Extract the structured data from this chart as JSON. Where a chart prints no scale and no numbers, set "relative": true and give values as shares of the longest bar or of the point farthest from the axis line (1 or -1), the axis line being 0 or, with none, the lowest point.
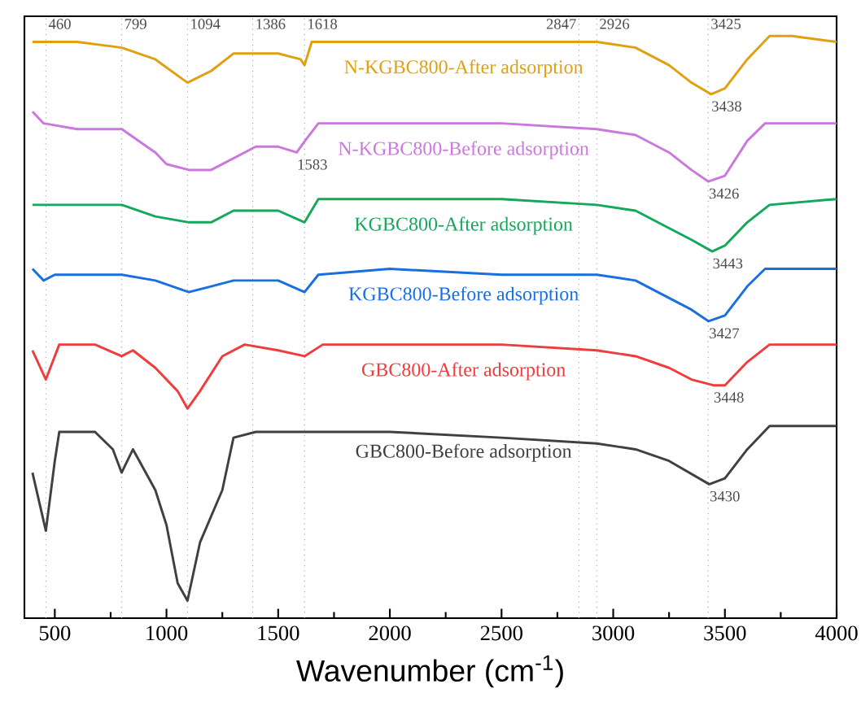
{
  "chart_data": {
    "type": "line",
    "xlabel": "Wavenumber (cm$^{-1}$)",
    "relative": true,
    "xlim": [
      364,
      4000
    ],
    "xticks": [
      500,
      1000,
      1500,
      2000,
      2500,
      3000,
      3500,
      4000
    ],
    "line_style": "solid",
    "series": [
      {
        "name": "N-KGBC800-After adsorption",
        "color": "#e0a010",
        "x": [
          400,
          600,
          800,
          950,
          1094,
          1200,
          1300,
          1500,
          1600,
          1618,
          1650,
          1800,
          2200,
          2500,
          2800,
          2926,
          3100,
          3250,
          3350,
          3438,
          3500,
          3600,
          3700,
          3800,
          4000
        ],
        "values": [
          0.99,
          0.99,
          0.98,
          0.96,
          0.92,
          0.94,
          0.97,
          0.97,
          0.96,
          0.95,
          0.99,
          0.99,
          0.99,
          0.99,
          0.99,
          0.99,
          0.98,
          0.95,
          0.92,
          0.9,
          0.91,
          0.96,
          1.0,
          1.0,
          0.99
        ]
      },
      {
        "name": "N-KGBC800-Before adsorption",
        "color": "#cc77dd",
        "x": [
          400,
          450,
          600,
          800,
          950,
          1000,
          1100,
          1200,
          1300,
          1400,
          1500,
          1583,
          1620,
          1680,
          1800,
          2500,
          2926,
          3100,
          3250,
          3350,
          3426,
          3500,
          3600,
          3680,
          4000
        ],
        "values": [
          0.87,
          0.85,
          0.84,
          0.84,
          0.8,
          0.78,
          0.77,
          0.77,
          0.79,
          0.81,
          0.81,
          0.8,
          0.82,
          0.85,
          0.85,
          0.85,
          0.84,
          0.83,
          0.8,
          0.77,
          0.75,
          0.76,
          0.82,
          0.85,
          0.85
        ]
      },
      {
        "name": "KGBC800-After adsorption",
        "color": "#14a85a",
        "x": [
          400,
          600,
          800,
          950,
          1100,
          1200,
          1300,
          1500,
          1618,
          1680,
          1800,
          2500,
          2926,
          3100,
          3250,
          3350,
          3443,
          3500,
          3600,
          3700,
          4000
        ],
        "values": [
          0.71,
          0.71,
          0.71,
          0.69,
          0.68,
          0.68,
          0.7,
          0.7,
          0.68,
          0.72,
          0.72,
          0.72,
          0.71,
          0.7,
          0.67,
          0.65,
          0.63,
          0.64,
          0.68,
          0.71,
          0.72
        ]
      },
      {
        "name": "KGBC800-Before adsorption",
        "color": "#1a6fe0",
        "x": [
          400,
          450,
          500,
          600,
          800,
          950,
          1100,
          1200,
          1300,
          1500,
          1618,
          1680,
          2000,
          2500,
          2926,
          3100,
          3250,
          3350,
          3427,
          3500,
          3600,
          3680,
          4000
        ],
        "values": [
          0.6,
          0.58,
          0.59,
          0.59,
          0.59,
          0.58,
          0.56,
          0.57,
          0.58,
          0.58,
          0.56,
          0.59,
          0.6,
          0.59,
          0.59,
          0.58,
          0.55,
          0.53,
          0.51,
          0.52,
          0.57,
          0.6,
          0.6
        ]
      },
      {
        "name": "GBC800-After adsorption",
        "color": "#f03c3c",
        "x": [
          400,
          460,
          520,
          680,
          799,
          850,
          950,
          1050,
          1094,
          1150,
          1250,
          1350,
          1500,
          1618,
          1700,
          2000,
          2500,
          2926,
          3100,
          3250,
          3350,
          3448,
          3500,
          3600,
          3700,
          4000
        ],
        "values": [
          0.46,
          0.41,
          0.47,
          0.47,
          0.45,
          0.46,
          0.43,
          0.39,
          0.36,
          0.39,
          0.45,
          0.47,
          0.46,
          0.45,
          0.47,
          0.47,
          0.47,
          0.46,
          0.45,
          0.43,
          0.41,
          0.4,
          0.4,
          0.44,
          0.47,
          0.47
        ]
      },
      {
        "name": "GBC800-Before adsorption",
        "color": "#404040",
        "x": [
          400,
          460,
          500,
          520,
          680,
          760,
          799,
          850,
          950,
          1000,
          1050,
          1094,
          1150,
          1250,
          1300,
          1400,
          2000,
          2500,
          2926,
          3100,
          3250,
          3430,
          3500,
          3600,
          3700,
          4000
        ],
        "values": [
          0.25,
          0.15,
          0.27,
          0.32,
          0.32,
          0.29,
          0.25,
          0.29,
          0.22,
          0.16,
          0.06,
          0.03,
          0.13,
          0.22,
          0.31,
          0.32,
          0.32,
          0.31,
          0.3,
          0.29,
          0.27,
          0.23,
          0.24,
          0.29,
          0.33,
          0.33
        ]
      }
    ],
    "ref_lines": [
      {
        "axis": "x",
        "value": 460,
        "label": "460",
        "color": "#999999",
        "line_style": "dotted"
      },
      {
        "axis": "x",
        "value": 799,
        "label": "799",
        "color": "#999999",
        "line_style": "dotted"
      },
      {
        "axis": "x",
        "value": 1094,
        "label": "1094",
        "color": "#999999",
        "line_style": "dotted"
      },
      {
        "axis": "x",
        "value": 1386,
        "label": "1386",
        "color": "#999999",
        "line_style": "dotted"
      },
      {
        "axis": "x",
        "value": 1618,
        "label": "1618",
        "color": "#999999",
        "line_style": "dotted"
      },
      {
        "axis": "x",
        "value": 2847,
        "label": "2847",
        "color": "#999999",
        "line_style": "dotted"
      },
      {
        "axis": "x",
        "value": 2926,
        "label": "2926",
        "color": "#999999",
        "line_style": "dotted"
      },
      {
        "axis": "x",
        "value": 3425,
        "label": "3425",
        "color": "#999999",
        "line_style": "dotted"
      }
    ],
    "annotations": [
      {
        "text": "1583",
        "x": 1583,
        "y": 0.8
      },
      {
        "text": "3438",
        "x": 3438,
        "y": 0.9
      },
      {
        "text": "3426",
        "x": 3426,
        "y": 0.75
      },
      {
        "text": "3443",
        "x": 3443,
        "y": 0.63
      },
      {
        "text": "3427",
        "x": 3427,
        "y": 0.51
      },
      {
        "text": "3448",
        "x": 3448,
        "y": 0.4
      },
      {
        "text": "3430",
        "x": 3430,
        "y": 0.23
      }
    ]
  }
}
